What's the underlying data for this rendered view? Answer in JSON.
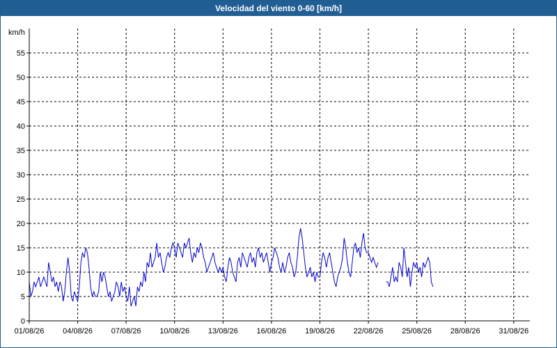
{
  "window": {
    "title": "Velocidad del viento 0-60 [km/h]"
  },
  "chart_data": {
    "type": "line",
    "title": "Velocidad del viento 0-60 [km/h]",
    "ylabel": "km/h",
    "xlabel": "",
    "ylim": [
      0,
      60
    ],
    "xlim": [
      0,
      31
    ],
    "grid": true,
    "line_color": "#0000cc",
    "y_ticks": [
      "0",
      "5",
      "10",
      "15",
      "20",
      "25",
      "30",
      "35",
      "40",
      "45",
      "50",
      "55"
    ],
    "x_ticks": [
      {
        "day": 0,
        "label": "01/08/26"
      },
      {
        "day": 3,
        "label": "04/08/26"
      },
      {
        "day": 6,
        "label": "07/08/26"
      },
      {
        "day": 9,
        "label": "10/08/26"
      },
      {
        "day": 12,
        "label": "13/08/26"
      },
      {
        "day": 15,
        "label": "16/08/26"
      },
      {
        "day": 18,
        "label": "19/08/26"
      },
      {
        "day": 21,
        "label": "22/08/26"
      },
      {
        "day": 24,
        "label": "25/08/26"
      },
      {
        "day": 27,
        "label": "28/08/26"
      },
      {
        "day": 30,
        "label": "31/08/26"
      }
    ],
    "series": [
      {
        "name": "",
        "segments": [
          [
            [
              0.0,
              8
            ],
            [
              0.1,
              5
            ],
            [
              0.2,
              6
            ],
            [
              0.3,
              8
            ],
            [
              0.4,
              7
            ],
            [
              0.5,
              8
            ],
            [
              0.6,
              9
            ],
            [
              0.7,
              7
            ],
            [
              0.8,
              8
            ],
            [
              0.9,
              9
            ],
            [
              1.0,
              8
            ],
            [
              1.1,
              7
            ],
            [
              1.2,
              12
            ],
            [
              1.3,
              10
            ],
            [
              1.4,
              8
            ],
            [
              1.5,
              9
            ],
            [
              1.6,
              7
            ],
            [
              1.7,
              8
            ],
            [
              1.8,
              6
            ],
            [
              1.9,
              8
            ],
            [
              2.0,
              7
            ],
            [
              2.1,
              4
            ],
            [
              2.2,
              6
            ],
            [
              2.3,
              10
            ],
            [
              2.4,
              13
            ],
            [
              2.5,
              10
            ],
            [
              2.6,
              5
            ],
            [
              2.7,
              4
            ],
            [
              2.8,
              6
            ],
            [
              2.9,
              5
            ],
            [
              3.0,
              4
            ],
            [
              3.1,
              7
            ],
            [
              3.2,
              12
            ],
            [
              3.3,
              14
            ],
            [
              3.4,
              13
            ],
            [
              3.5,
              15
            ],
            [
              3.6,
              14
            ],
            [
              3.7,
              11
            ],
            [
              3.8,
              7
            ],
            [
              3.9,
              5
            ],
            [
              4.0,
              6
            ],
            [
              4.1,
              5
            ],
            [
              4.2,
              5
            ],
            [
              4.3,
              6
            ],
            [
              4.4,
              10
            ],
            [
              4.5,
              8
            ],
            [
              4.6,
              10
            ],
            [
              4.7,
              9
            ],
            [
              4.8,
              7
            ],
            [
              4.9,
              5
            ],
            [
              5.0,
              6
            ],
            [
              5.1,
              4
            ],
            [
              5.2,
              5
            ],
            [
              5.3,
              6
            ],
            [
              5.4,
              8
            ],
            [
              5.5,
              7
            ],
            [
              5.6,
              5
            ],
            [
              5.7,
              8
            ],
            [
              5.8,
              6
            ],
            [
              5.9,
              7
            ],
            [
              6.0,
              5
            ],
            [
              6.1,
              4
            ],
            [
              6.2,
              7
            ],
            [
              6.3,
              3
            ],
            [
              6.4,
              4
            ],
            [
              6.5,
              5
            ],
            [
              6.6,
              3
            ],
            [
              6.7,
              7
            ],
            [
              6.8,
              6
            ],
            [
              6.9,
              8
            ],
            [
              7.0,
              7
            ],
            [
              7.1,
              10
            ],
            [
              7.2,
              8
            ],
            [
              7.3,
              12
            ],
            [
              7.4,
              11
            ],
            [
              7.5,
              14
            ],
            [
              7.6,
              11
            ],
            [
              7.7,
              12
            ],
            [
              7.8,
              13
            ],
            [
              7.9,
              16
            ],
            [
              8.0,
              13
            ],
            [
              8.1,
              14
            ],
            [
              8.2,
              12
            ],
            [
              8.3,
              10
            ],
            [
              8.4,
              11
            ],
            [
              8.5,
              13
            ],
            [
              8.6,
              14
            ],
            [
              8.7,
              13
            ],
            [
              8.8,
              15
            ],
            [
              8.9,
              16
            ],
            [
              9.0,
              15
            ],
            [
              9.1,
              13
            ],
            [
              9.2,
              16
            ],
            [
              9.3,
              15
            ],
            [
              9.4,
              14
            ],
            [
              9.5,
              13
            ],
            [
              9.6,
              16
            ],
            [
              9.7,
              15
            ],
            [
              9.8,
              16
            ],
            [
              9.9,
              17
            ],
            [
              10.0,
              14
            ],
            [
              10.1,
              12
            ],
            [
              10.2,
              14
            ],
            [
              10.3,
              13
            ],
            [
              10.4,
              15
            ],
            [
              10.5,
              14
            ],
            [
              10.6,
              16
            ],
            [
              10.7,
              15
            ],
            [
              10.8,
              13
            ],
            [
              10.9,
              12
            ],
            [
              11.0,
              10
            ],
            [
              11.1,
              11
            ],
            [
              11.2,
              12
            ],
            [
              11.3,
              13
            ],
            [
              11.4,
              14
            ],
            [
              11.5,
              12
            ],
            [
              11.6,
              11
            ],
            [
              11.7,
              10
            ],
            [
              11.8,
              11
            ],
            [
              11.9,
              10
            ],
            [
              12.0,
              11
            ],
            [
              12.1,
              9
            ],
            [
              12.2,
              8
            ],
            [
              12.3,
              11
            ],
            [
              12.4,
              13
            ],
            [
              12.5,
              12
            ],
            [
              12.6,
              10
            ],
            [
              12.7,
              9
            ],
            [
              12.8,
              8
            ],
            [
              12.9,
              12
            ],
            [
              13.0,
              13
            ],
            [
              13.1,
              11
            ],
            [
              13.2,
              14
            ],
            [
              13.3,
              13
            ],
            [
              13.4,
              12
            ],
            [
              13.5,
              11
            ],
            [
              13.6,
              13
            ],
            [
              13.7,
              14
            ],
            [
              13.8,
              12
            ],
            [
              13.9,
              13
            ],
            [
              14.0,
              11
            ],
            [
              14.1,
              14
            ],
            [
              14.2,
              15
            ],
            [
              14.3,
              13
            ],
            [
              14.4,
              14
            ],
            [
              14.5,
              12
            ],
            [
              14.6,
              13
            ],
            [
              14.7,
              14
            ],
            [
              14.8,
              12
            ],
            [
              14.9,
              10
            ],
            [
              15.0,
              12
            ],
            [
              15.1,
              13
            ],
            [
              15.2,
              15
            ],
            [
              15.3,
              14
            ],
            [
              15.4,
              13
            ],
            [
              15.5,
              11
            ],
            [
              15.6,
              10
            ],
            [
              15.7,
              12
            ],
            [
              15.8,
              10
            ],
            [
              15.9,
              11
            ],
            [
              16.0,
              13
            ],
            [
              16.1,
              14
            ],
            [
              16.2,
              12
            ],
            [
              16.3,
              11
            ],
            [
              16.4,
              9
            ],
            [
              16.5,
              10
            ],
            [
              16.6,
              13
            ],
            [
              16.7,
              17
            ],
            [
              16.8,
              19
            ],
            [
              16.9,
              17
            ],
            [
              17.0,
              14
            ],
            [
              17.1,
              11
            ],
            [
              17.2,
              9
            ],
            [
              17.3,
              10
            ],
            [
              17.4,
              11
            ],
            [
              17.5,
              9
            ],
            [
              17.6,
              10
            ],
            [
              17.7,
              8
            ],
            [
              17.8,
              10
            ],
            [
              17.9,
              9
            ],
            [
              18.0,
              9
            ],
            [
              18.1,
              12
            ],
            [
              18.2,
              14
            ],
            [
              18.3,
              13
            ],
            [
              18.4,
              11
            ],
            [
              18.5,
              13
            ],
            [
              18.6,
              14
            ],
            [
              18.7,
              12
            ],
            [
              18.8,
              10
            ],
            [
              18.9,
              8
            ],
            [
              19.0,
              7
            ],
            [
              19.1,
              9
            ],
            [
              19.2,
              10
            ],
            [
              19.3,
              11
            ],
            [
              19.4,
              13
            ],
            [
              19.5,
              17
            ],
            [
              19.6,
              15
            ],
            [
              19.7,
              12
            ],
            [
              19.8,
              10
            ],
            [
              19.9,
              9
            ],
            [
              20.0,
              12
            ],
            [
              20.1,
              15
            ],
            [
              20.2,
              16
            ],
            [
              20.3,
              14
            ],
            [
              20.4,
              15
            ],
            [
              20.5,
              13
            ],
            [
              20.6,
              16
            ],
            [
              20.7,
              18
            ],
            [
              20.8,
              15
            ],
            [
              20.9,
              14
            ],
            [
              21.0,
              14
            ],
            [
              21.1,
              13
            ],
            [
              21.2,
              12
            ],
            [
              21.3,
              13
            ],
            [
              21.4,
              12
            ],
            [
              21.5,
              11
            ],
            [
              21.6,
              12
            ]
          ],
          [
            [
              22.1,
              8
            ],
            [
              22.2,
              8
            ],
            [
              22.3,
              7
            ],
            [
              22.4,
              9
            ],
            [
              22.5,
              11
            ],
            [
              22.6,
              8
            ],
            [
              22.7,
              9
            ],
            [
              22.8,
              8
            ],
            [
              22.9,
              12
            ],
            [
              23.0,
              11
            ],
            [
              23.1,
              9
            ],
            [
              23.2,
              15
            ],
            [
              23.3,
              12
            ],
            [
              23.4,
              9
            ],
            [
              23.5,
              11
            ],
            [
              23.6,
              7
            ],
            [
              23.7,
              10
            ],
            [
              23.8,
              12
            ],
            [
              23.9,
              11
            ],
            [
              24.0,
              12
            ],
            [
              24.1,
              10
            ],
            [
              24.2,
              11
            ],
            [
              24.3,
              9
            ],
            [
              24.4,
              12
            ],
            [
              24.5,
              11
            ],
            [
              24.6,
              12
            ],
            [
              24.7,
              13
            ],
            [
              24.8,
              12
            ],
            [
              24.9,
              8
            ],
            [
              25.0,
              7
            ]
          ]
        ]
      }
    ]
  }
}
